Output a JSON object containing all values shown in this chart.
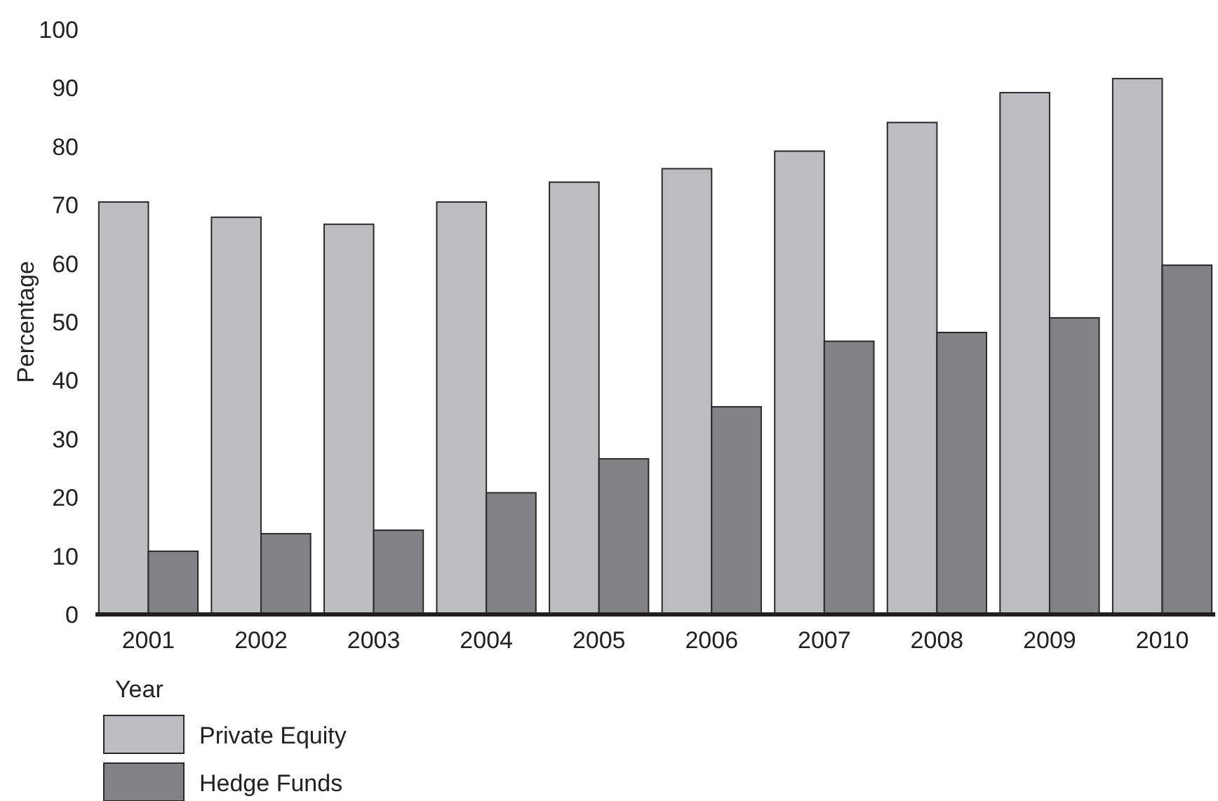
{
  "chart_data": {
    "type": "bar",
    "xlabel": "Year",
    "ylabel": "Percentage",
    "categories": [
      "2001",
      "2002",
      "2003",
      "2004",
      "2005",
      "2006",
      "2007",
      "2008",
      "2009",
      "2010"
    ],
    "series": [
      {
        "name": "Private Equity",
        "color": "#bcbdc1",
        "values": [
          70.5,
          67.9,
          66.7,
          70.5,
          73.9,
          76.2,
          79.2,
          84.1,
          89.2,
          91.6
        ]
      },
      {
        "name": "Hedge Funds",
        "color": "#818286",
        "values": [
          10.8,
          13.8,
          14.4,
          20.8,
          26.6,
          35.5,
          46.7,
          48.2,
          50.7,
          59.7
        ]
      }
    ],
    "ylim": [
      0,
      100
    ],
    "yticks": [
      0,
      10,
      20,
      30,
      40,
      50,
      60,
      70,
      80,
      90,
      100
    ],
    "grid": false,
    "legend": "bottom left"
  }
}
